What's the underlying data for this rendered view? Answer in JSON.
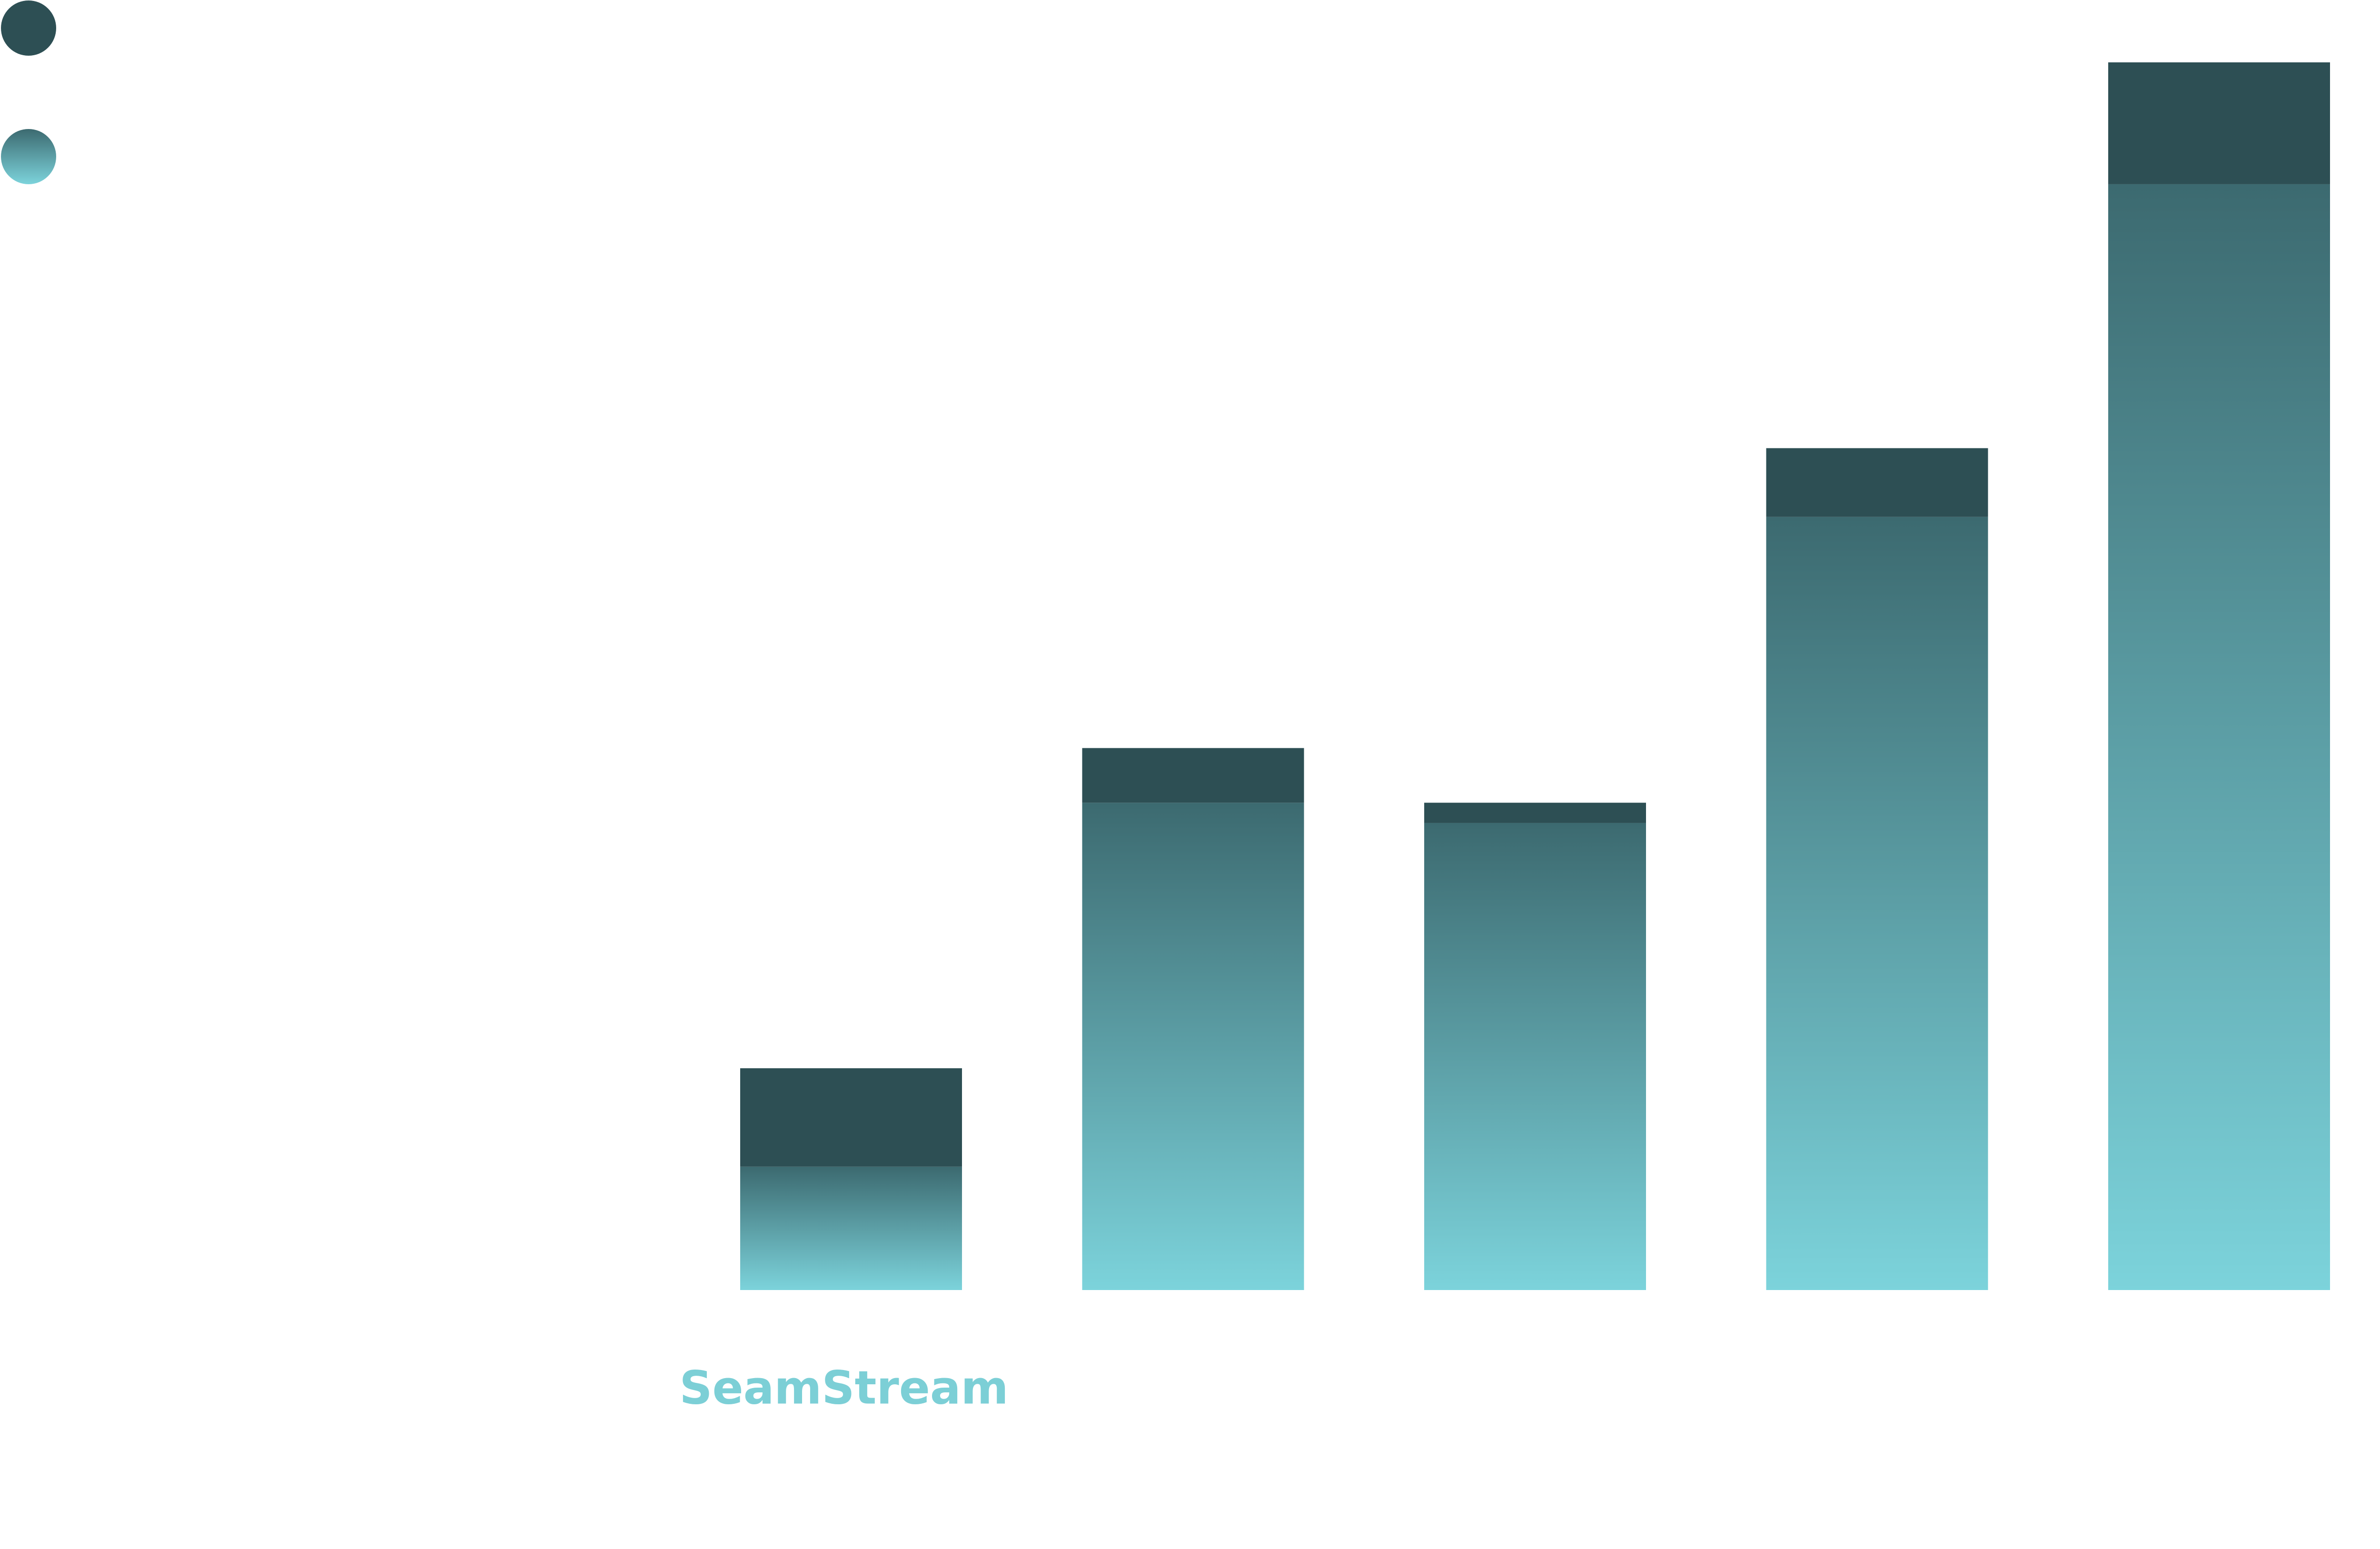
{
  "chart_data": {
    "type": "stacked-bar",
    "categories": [
      "SeamStream",
      null,
      null,
      null,
      null
    ],
    "series": [
      {
        "gradient": [
          "#3c6a70",
          "#7cd3db"
        ],
        "values": [
          79,
          312,
          299,
          495,
          708
        ]
      },
      {
        "color": "#2d4f54",
        "values": [
          63,
          35,
          13,
          44,
          78
        ]
      }
    ],
    "label_color": "#7ccfd6",
    "ylim": [
      0,
      786
    ],
    "legend": "top-left"
  }
}
